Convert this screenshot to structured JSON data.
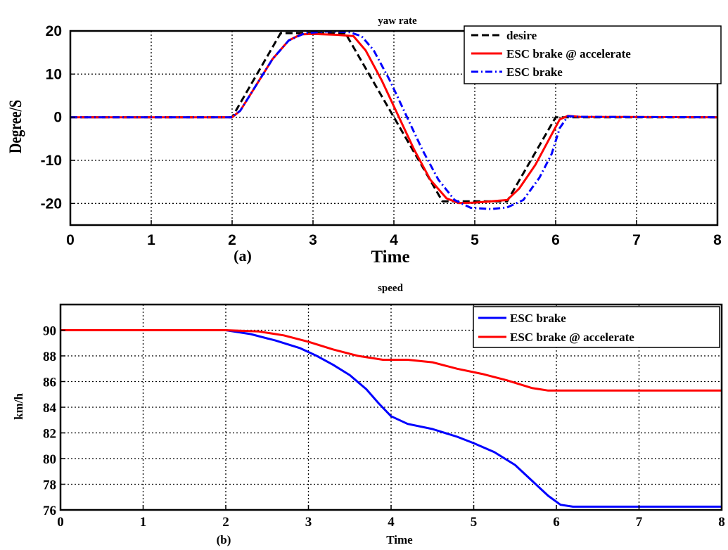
{
  "colors": {
    "desire": "#000000",
    "accelerate": "#ff0000",
    "brake": "#0000ff",
    "grid": "#000000",
    "background": "#ffffff"
  },
  "chart_data": [
    {
      "type": "line",
      "title": "yaw rate",
      "subplot_label": "(a)",
      "xlabel": "Time",
      "ylabel": "Degree/S",
      "xlim": [
        0,
        8
      ],
      "ylim": [
        -25,
        20
      ],
      "xticks": [
        0,
        1,
        2,
        3,
        4,
        5,
        6,
        7,
        8
      ],
      "yticks": [
        -20,
        -10,
        0,
        10,
        20
      ],
      "grid": true,
      "legend_position": "top-right",
      "series": [
        {
          "name": "desire",
          "style": "dashed",
          "color": "#000000",
          "points": [
            [
              0,
              0
            ],
            [
              2,
              0
            ],
            [
              2.6,
              19.5
            ],
            [
              3.4,
              19.5
            ],
            [
              4.6,
              -19.5
            ],
            [
              5.4,
              -19.5
            ],
            [
              6,
              0
            ],
            [
              8,
              0
            ]
          ]
        },
        {
          "name": "ESC brake @ accelerate",
          "style": "solid",
          "color": "#ff0000",
          "points": [
            [
              0,
              0
            ],
            [
              2.0,
              0
            ],
            [
              2.1,
              1.5
            ],
            [
              2.3,
              7.5
            ],
            [
              2.5,
              13.5
            ],
            [
              2.7,
              17.8
            ],
            [
              2.85,
              19.2
            ],
            [
              3.0,
              19.3
            ],
            [
              3.3,
              19.1
            ],
            [
              3.5,
              18.8
            ],
            [
              3.65,
              15.5
            ],
            [
              3.85,
              8.5
            ],
            [
              4.05,
              0.5
            ],
            [
              4.25,
              -7.5
            ],
            [
              4.45,
              -14.5
            ],
            [
              4.65,
              -18.8
            ],
            [
              4.8,
              -19.9
            ],
            [
              5.0,
              -19.8
            ],
            [
              5.2,
              -19.5
            ],
            [
              5.4,
              -19.2
            ],
            [
              5.55,
              -16.5
            ],
            [
              5.75,
              -11
            ],
            [
              5.95,
              -4
            ],
            [
              6.05,
              -0.5
            ],
            [
              6.15,
              0.3
            ],
            [
              6.3,
              0.1
            ],
            [
              8,
              0
            ]
          ]
        },
        {
          "name": "ESC brake",
          "style": "dashdot",
          "color": "#0000ff",
          "points": [
            [
              0,
              0
            ],
            [
              2.0,
              0
            ],
            [
              2.1,
              1.5
            ],
            [
              2.3,
              7.5
            ],
            [
              2.5,
              13.5
            ],
            [
              2.7,
              17.8
            ],
            [
              2.9,
              19.5
            ],
            [
              3.2,
              19.9
            ],
            [
              3.45,
              19.7
            ],
            [
              3.6,
              18.8
            ],
            [
              3.75,
              15.5
            ],
            [
              3.95,
              8.5
            ],
            [
              4.15,
              0.5
            ],
            [
              4.35,
              -7.5
            ],
            [
              4.55,
              -14.5
            ],
            [
              4.75,
              -19.2
            ],
            [
              4.95,
              -21.0
            ],
            [
              5.2,
              -21.3
            ],
            [
              5.4,
              -20.9
            ],
            [
              5.6,
              -19.2
            ],
            [
              5.8,
              -14
            ],
            [
              5.95,
              -8.5
            ],
            [
              6.05,
              -2.5
            ],
            [
              6.15,
              0.2
            ],
            [
              6.3,
              0.1
            ],
            [
              8,
              0
            ]
          ]
        }
      ]
    },
    {
      "type": "line",
      "title": "speed",
      "subplot_label": "(b)",
      "xlabel": "Time",
      "ylabel": "km/h",
      "xlim": [
        0,
        8
      ],
      "ylim": [
        76,
        92
      ],
      "xticks": [
        0,
        1,
        2,
        3,
        4,
        5,
        6,
        7,
        8
      ],
      "yticks": [
        76,
        78,
        80,
        82,
        84,
        86,
        88,
        90
      ],
      "grid": true,
      "legend_position": "top-right",
      "series": [
        {
          "name": "ESC brake",
          "style": "solid",
          "color": "#0000ff",
          "points": [
            [
              0,
              90
            ],
            [
              2.0,
              90
            ],
            [
              2.3,
              89.7
            ],
            [
              2.6,
              89.2
            ],
            [
              2.9,
              88.6
            ],
            [
              3.1,
              88.0
            ],
            [
              3.3,
              87.3
            ],
            [
              3.5,
              86.5
            ],
            [
              3.7,
              85.4
            ],
            [
              3.85,
              84.3
            ],
            [
              4.0,
              83.3
            ],
            [
              4.2,
              82.7
            ],
            [
              4.5,
              82.3
            ],
            [
              4.8,
              81.7
            ],
            [
              5.0,
              81.2
            ],
            [
              5.25,
              80.5
            ],
            [
              5.5,
              79.5
            ],
            [
              5.7,
              78.3
            ],
            [
              5.9,
              77.1
            ],
            [
              6.05,
              76.4
            ],
            [
              6.2,
              76.25
            ],
            [
              8,
              76.25
            ]
          ]
        },
        {
          "name": "ESC brake @ accelerate",
          "style": "solid",
          "color": "#ff0000",
          "points": [
            [
              0,
              90
            ],
            [
              2.0,
              90
            ],
            [
              2.4,
              89.9
            ],
            [
              2.7,
              89.6
            ],
            [
              3.0,
              89.1
            ],
            [
              3.3,
              88.5
            ],
            [
              3.6,
              88.0
            ],
            [
              3.9,
              87.7
            ],
            [
              4.2,
              87.7
            ],
            [
              4.5,
              87.5
            ],
            [
              4.8,
              87.0
            ],
            [
              5.1,
              86.6
            ],
            [
              5.4,
              86.1
            ],
            [
              5.7,
              85.5
            ],
            [
              5.9,
              85.3
            ],
            [
              6.2,
              85.3
            ],
            [
              8,
              85.3
            ]
          ]
        }
      ]
    }
  ]
}
